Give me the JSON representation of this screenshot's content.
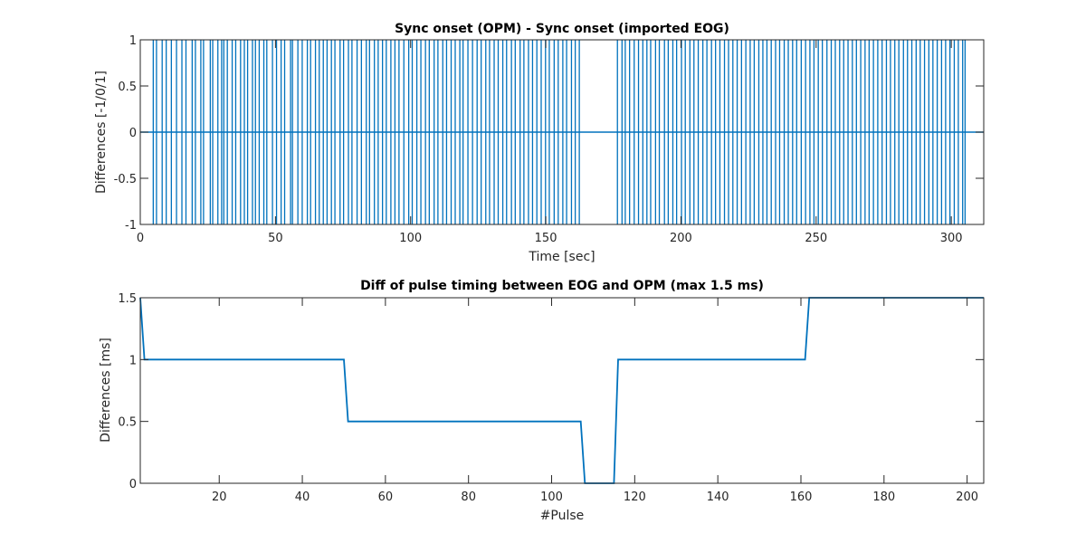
{
  "chart_data": [
    {
      "type": "line",
      "title": "Sync onset (OPM) - Sync onset (imported EOG)",
      "xlabel": "Time [sec]",
      "ylabel": "Differences [-1/0/1]",
      "xlim": [
        0,
        312
      ],
      "ylim": [
        -1,
        1
      ],
      "xticks": [
        "0",
        "50",
        "100",
        "150",
        "200",
        "250",
        "300"
      ],
      "yticks": [
        "-1",
        "-0.5",
        "0",
        "0.5",
        "1"
      ],
      "grid": false,
      "color": "#0072bd",
      "series": [
        {
          "description": "baseline at 0 with alternating +1/-1 spikes at pulse onsets",
          "x": [
            0,
            312
          ],
          "y": [
            0,
            0
          ],
          "spike_times": [
            4.8,
            6.0,
            8.1,
            9.6,
            11.5,
            13.4,
            15.4,
            16.9,
            19.2,
            20.4,
            22.4,
            23.4,
            25.9,
            26.8,
            28.7,
            30.1,
            30.9,
            32.2,
            34.0,
            35.3,
            37.1,
            38.5,
            39.7,
            41.5,
            42.6,
            44.0,
            45.7,
            46.8,
            48.9,
            50.4,
            52.1,
            53.4,
            55.6,
            56.3,
            58.3,
            59.9,
            61.8,
            63.0,
            64.8,
            66.2,
            67.7,
            69.1,
            70.7,
            72.0,
            73.9,
            75.2,
            77.0,
            78.3,
            80.2,
            81.8,
            83.6,
            84.8,
            86.6,
            88.0,
            89.6,
            91.0,
            92.7,
            94.2,
            95.7,
            97.5,
            99.3,
            100.6,
            102.3,
            103.8,
            105.5,
            106.9,
            108.7,
            110.1,
            111.9,
            113.3,
            115.0,
            116.5,
            118.2,
            119.4,
            121.2,
            122.9,
            124.6,
            126.1,
            127.8,
            129.2,
            130.9,
            132.4,
            134.1,
            135.5,
            137.3,
            138.7,
            140.5,
            141.9,
            143.6,
            145.1,
            146.7,
            148.3,
            149.9,
            151.3,
            153.1,
            154.6,
            156.3,
            157.7,
            159.5,
            160.9,
            162.4,
            176.5,
            178.2,
            179.4,
            181.0,
            182.7,
            184.3,
            185.9,
            187.4,
            188.8,
            190.6,
            192.0,
            193.9,
            195.3,
            197.0,
            198.4,
            200.2,
            201.6,
            203.3,
            204.8,
            206.4,
            208.1,
            209.6,
            211.3,
            212.8,
            214.4,
            216.1,
            217.6,
            219.2,
            220.8,
            222.4,
            224.0,
            225.6,
            227.1,
            228.8,
            230.3,
            231.8,
            233.4,
            235.0,
            236.5,
            238.2,
            239.7,
            241.3,
            242.8,
            244.5,
            246.1,
            247.7,
            249.2,
            250.8,
            252.3,
            254.0,
            255.6,
            257.1,
            258.7,
            260.2,
            261.8,
            263.4,
            264.9,
            266.5,
            268.1,
            269.6,
            271.2,
            272.8,
            274.4,
            276.0,
            277.5,
            279.1,
            280.6,
            282.3,
            283.8,
            285.4,
            287.0,
            288.5,
            290.1,
            291.7,
            293.2,
            294.8,
            296.4,
            297.9,
            299.5,
            301.1,
            302.6,
            304.2,
            305.1
          ]
        }
      ]
    },
    {
      "type": "line",
      "title": "Diff of pulse timing between EOG and OPM (max 1.5 ms)",
      "xlabel": "#Pulse",
      "ylabel": "Differences [ms]",
      "xlim": [
        1,
        204
      ],
      "ylim": [
        0,
        1.5
      ],
      "xticks": [
        "20",
        "40",
        "60",
        "80",
        "100",
        "120",
        "140",
        "160",
        "180",
        "200"
      ],
      "yticks": [
        "0",
        "0.5",
        "1",
        "1.5"
      ],
      "grid": false,
      "color": "#0072bd",
      "series": [
        {
          "x": [
            1,
            2,
            50,
            51,
            107,
            108,
            115,
            116,
            161,
            162,
            204
          ],
          "y": [
            1.5,
            1,
            1,
            0.5,
            0.5,
            0,
            0,
            1,
            1,
            1.5,
            1.5
          ]
        }
      ]
    }
  ]
}
